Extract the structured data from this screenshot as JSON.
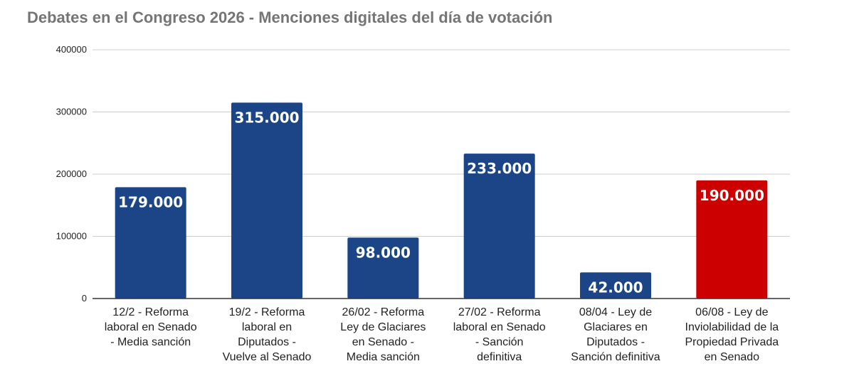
{
  "chart_data": {
    "type": "bar",
    "title": "Debates en el Congreso 2026 - Menciones digitales del día de votación",
    "xlabel": "",
    "ylabel": "",
    "ylim": [
      0,
      400000
    ],
    "yticks": [
      0,
      100000,
      200000,
      300000,
      400000
    ],
    "grid": true,
    "legend": "none",
    "categories": [
      [
        "12/2 - Reforma",
        "laboral en Senado",
        "- Media sanción"
      ],
      [
        "19/2 - Reforma",
        "laboral en",
        "Diputados -",
        "Vuelve al Senado"
      ],
      [
        "26/02 - Reforma",
        "Ley de Glaciares",
        "en Senado -",
        "Media sanción"
      ],
      [
        "27/02 - Reforma",
        "laboral en Senado",
        "- Sanción",
        "definitiva"
      ],
      [
        "08/04 - Ley de",
        "Glaciares en",
        "Diputados -",
        "Sanción definitiva"
      ],
      [
        "06/08 - Ley de",
        "Inviolabilidad de la",
        "Propiedad Privada",
        "en Senado"
      ]
    ],
    "values": [
      179000,
      315000,
      98000,
      233000,
      42000,
      190000
    ],
    "data_labels": [
      "179.000",
      "315.000",
      "98.000",
      "233.000",
      "42.000",
      "190.000"
    ],
    "colors": [
      "#1c4587",
      "#1c4587",
      "#1c4587",
      "#1c4587",
      "#1c4587",
      "#cc0000"
    ],
    "grid_color": "#cccccc",
    "axis_color": "#333333"
  }
}
